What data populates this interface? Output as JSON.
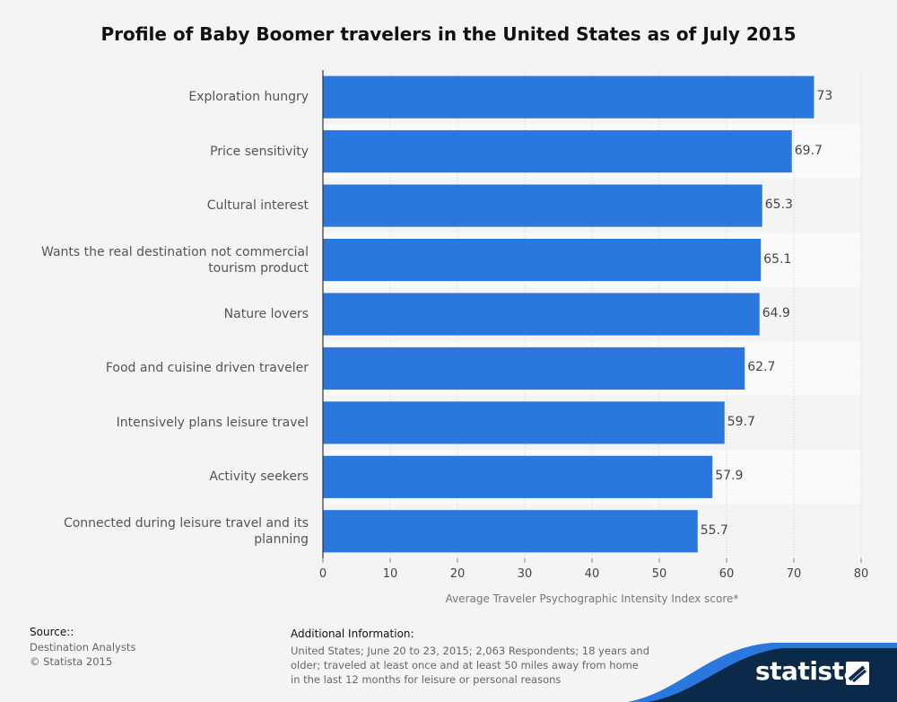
{
  "chart_data": {
    "type": "bar",
    "orientation": "horizontal",
    "title": "Profile of Baby Boomer travelers in the United States as of July 2015",
    "xlabel": "Average Traveler Psychographic Intensity Index score*",
    "categories": [
      "Exploration hungry",
      "Price sensitivity",
      "Cultural interest",
      "Wants the real destination not commercial tourism product",
      "Nature lovers",
      "Food and cuisine driven traveler",
      "Intensively plans leisure travel",
      "Activity seekers",
      "Connected during leisure travel and its planning"
    ],
    "values": [
      73,
      69.7,
      65.3,
      65.1,
      64.9,
      62.7,
      59.7,
      57.9,
      55.7
    ],
    "value_labels": [
      "73",
      "69.7",
      "65.3",
      "65.1",
      "64.9",
      "62.7",
      "59.7",
      "57.9",
      "55.7"
    ],
    "xlim": [
      0,
      80
    ],
    "xticks": [
      0,
      10,
      20,
      30,
      40,
      50,
      60,
      70,
      80
    ],
    "grid": true,
    "bar_color": "#2a77de"
  },
  "footer": {
    "source_heading": "Source::",
    "source_lines": [
      "Destination Analysts",
      "© Statista 2015"
    ],
    "info_heading": "Additional Information:",
    "info_text": "United States; June 20 to 23, 2015; 2,063 Respondents; 18 years and older; traveled at least once and at least 50 miles away from home in the last 12 months for leisure or personal reasons",
    "brand": "statista"
  },
  "colors": {
    "footer_dark": "#0b2a4a",
    "footer_accent": "#2a77de"
  }
}
